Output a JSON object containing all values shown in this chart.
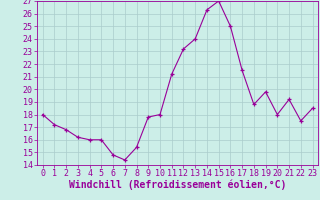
{
  "x": [
    0,
    1,
    2,
    3,
    4,
    5,
    6,
    7,
    8,
    9,
    10,
    11,
    12,
    13,
    14,
    15,
    16,
    17,
    18,
    19,
    20,
    21,
    22,
    23
  ],
  "y": [
    18.0,
    17.2,
    16.8,
    16.2,
    16.0,
    16.0,
    14.8,
    14.4,
    15.4,
    17.8,
    18.0,
    21.2,
    23.2,
    24.0,
    26.3,
    27.0,
    25.0,
    21.5,
    18.8,
    19.8,
    18.0,
    19.2,
    17.5,
    18.5
  ],
  "line_color": "#990099",
  "marker": "+",
  "marker_size": 3,
  "bg_color": "#cceee8",
  "grid_color": "#aacccc",
  "xlabel": "Windchill (Refroidissement éolien,°C)",
  "xlabel_color": "#990099",
  "xlabel_fontsize": 7,
  "tick_color": "#990099",
  "tick_fontsize": 6,
  "ylim": [
    14,
    27
  ],
  "xlim_min": -0.5,
  "xlim_max": 23.5,
  "yticks": [
    14,
    15,
    16,
    17,
    18,
    19,
    20,
    21,
    22,
    23,
    24,
    25,
    26,
    27
  ],
  "xticks": [
    0,
    1,
    2,
    3,
    4,
    5,
    6,
    7,
    8,
    9,
    10,
    11,
    12,
    13,
    14,
    15,
    16,
    17,
    18,
    19,
    20,
    21,
    22,
    23
  ]
}
